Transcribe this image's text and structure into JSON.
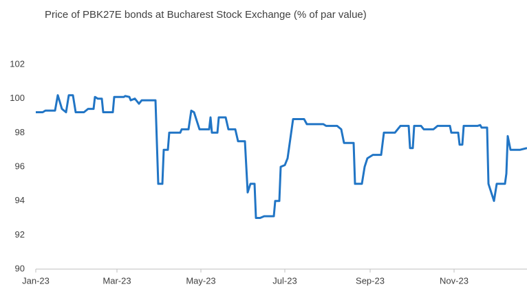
{
  "chart_data": {
    "type": "line",
    "title": "Price of PBK27E bonds at Bucharest Stock Exchange (% of par value)",
    "x": [
      0,
      5,
      7,
      14,
      16,
      19,
      22,
      24,
      27,
      29,
      35,
      38,
      42,
      43,
      45,
      48,
      49,
      56,
      57,
      64,
      65,
      68,
      69,
      72,
      75,
      77,
      87,
      89,
      92,
      93,
      96,
      97,
      105,
      106,
      111,
      113,
      115,
      119,
      126,
      127,
      128,
      132,
      133,
      138,
      140,
      145,
      147,
      152,
      154,
      156,
      159,
      160,
      163,
      166,
      173,
      174,
      177,
      178,
      181,
      183,
      187,
      195,
      197,
      209,
      211,
      219,
      222,
      224,
      231,
      232,
      237,
      239,
      241,
      243,
      245,
      251,
      253,
      261,
      265,
      271,
      272,
      274,
      275,
      280,
      282,
      289,
      292,
      301,
      302,
      307,
      308,
      310,
      311,
      321,
      323,
      324,
      328,
      329,
      333,
      335,
      341,
      342,
      343,
      345,
      352,
      357
    ],
    "series": [
      {
        "name": "PBK27E",
        "color": "#2175c5",
        "values": [
          99.2,
          99.2,
          99.3,
          99.3,
          100.2,
          99.4,
          99.2,
          100.2,
          100.2,
          99.2,
          99.2,
          99.4,
          99.4,
          100.1,
          100,
          100,
          99.2,
          99.2,
          100.1,
          100.1,
          100.15,
          100.1,
          99.9,
          100,
          99.7,
          99.9,
          99.9,
          95,
          95,
          97,
          97,
          98,
          98,
          98.2,
          98.2,
          99.3,
          99.2,
          98.2,
          98.2,
          98.9,
          98,
          98,
          98.9,
          98.9,
          98.2,
          98.2,
          97.5,
          97.5,
          94.5,
          95,
          95,
          93,
          93,
          93.1,
          93.1,
          94,
          94,
          96,
          96.1,
          96.5,
          98.8,
          98.8,
          98.5,
          98.5,
          98.4,
          98.4,
          98.2,
          97.4,
          97.4,
          95,
          95,
          96,
          96.5,
          96.6,
          96.7,
          96.7,
          98,
          98,
          98.4,
          98.4,
          97.1,
          97.1,
          98.4,
          98.4,
          98.2,
          98.2,
          98.4,
          98.4,
          98,
          98,
          97.3,
          97.3,
          98.4,
          98.4,
          98.45,
          98.3,
          98.3,
          95,
          94,
          95,
          95,
          95.6,
          97.8,
          97,
          97,
          97.1
        ]
      }
    ],
    "xlim": [
      0,
      357
    ],
    "xticks": [
      {
        "value": 0,
        "label": "Jan-23"
      },
      {
        "value": 59,
        "label": "Mar-23"
      },
      {
        "value": 120,
        "label": "May-23"
      },
      {
        "value": 181,
        "label": "Jul-23"
      },
      {
        "value": 243,
        "label": "Sep-23"
      },
      {
        "value": 304,
        "label": "Nov-23"
      }
    ],
    "ylim": [
      90,
      102
    ],
    "yticks": [
      90,
      92,
      94,
      96,
      98,
      100,
      102
    ],
    "grid": false
  }
}
